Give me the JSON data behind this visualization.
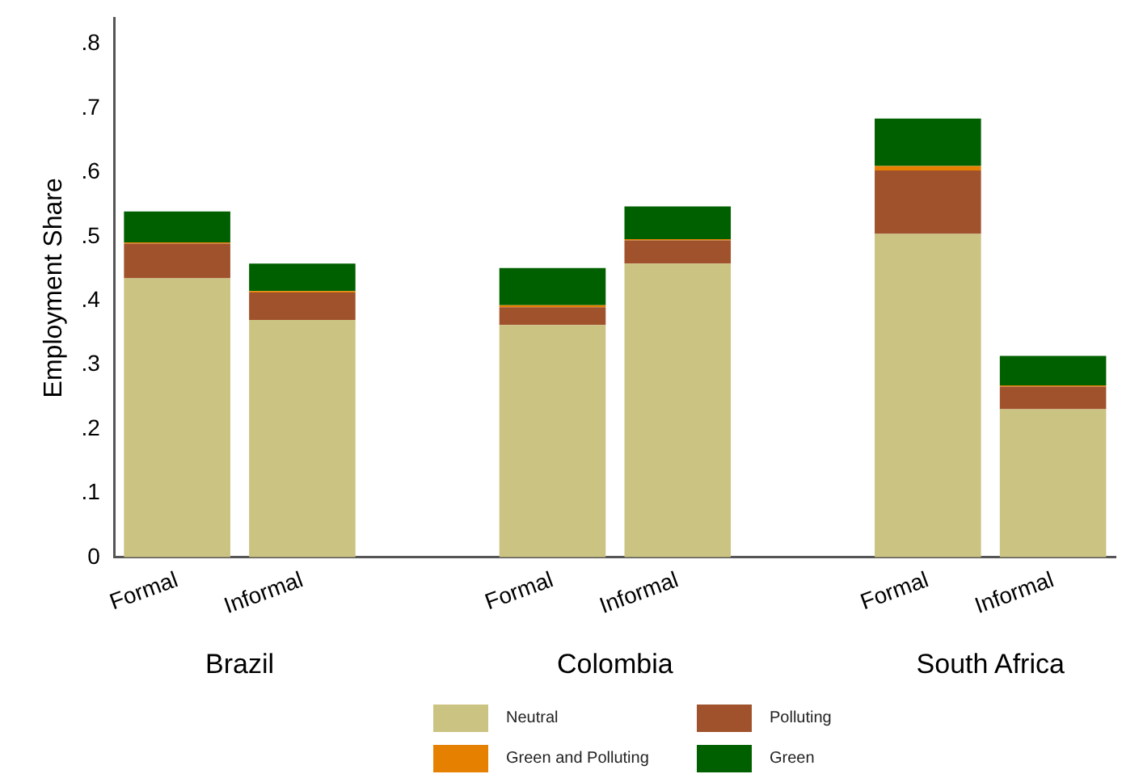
{
  "chart_data": {
    "type": "bar",
    "stacked": true,
    "ylabel": "Employment Share",
    "categories": [
      "Formal",
      "Informal",
      null,
      "Formal",
      "Informal",
      null,
      "Formal",
      "Informal"
    ],
    "annotations": [
      "Brazil",
      "Colombia",
      "South Africa"
    ],
    "series": [
      {
        "name": "Neutral",
        "color": "#cbc382",
        "values": [
          0.435,
          0.37,
          null,
          0.362,
          0.458,
          null,
          0.504,
          0.231
        ]
      },
      {
        "name": "Polluting",
        "color": "#a0522d",
        "values": [
          0.054,
          0.043,
          null,
          0.028,
          0.036,
          null,
          0.099,
          0.035
        ]
      },
      {
        "name": "Green and Polluting",
        "color": "#e58000",
        "values": [
          0.002,
          0.002,
          null,
          0.003,
          0.002,
          null,
          0.007,
          0.002
        ]
      },
      {
        "name": "Green",
        "color": "#006000",
        "values": [
          0.048,
          0.043,
          null,
          0.058,
          0.051,
          null,
          0.074,
          0.046
        ]
      }
    ],
    "ylim": [
      0,
      0.84
    ],
    "yticks": [
      0,
      {
        "value": 0.1,
        "label": ".1"
      },
      {
        "value": 0.2,
        "label": ".2"
      },
      {
        "value": 0.3,
        "label": ".3"
      },
      {
        "value": 0.4,
        "label": ".4"
      },
      {
        "value": 0.5,
        "label": ".5"
      },
      {
        "value": 0.6,
        "label": ".6"
      },
      {
        "value": 0.7,
        "label": ".7"
      },
      {
        "value": 0.8,
        "label": ".8"
      }
    ],
    "grid": false,
    "legend": "bottom"
  }
}
